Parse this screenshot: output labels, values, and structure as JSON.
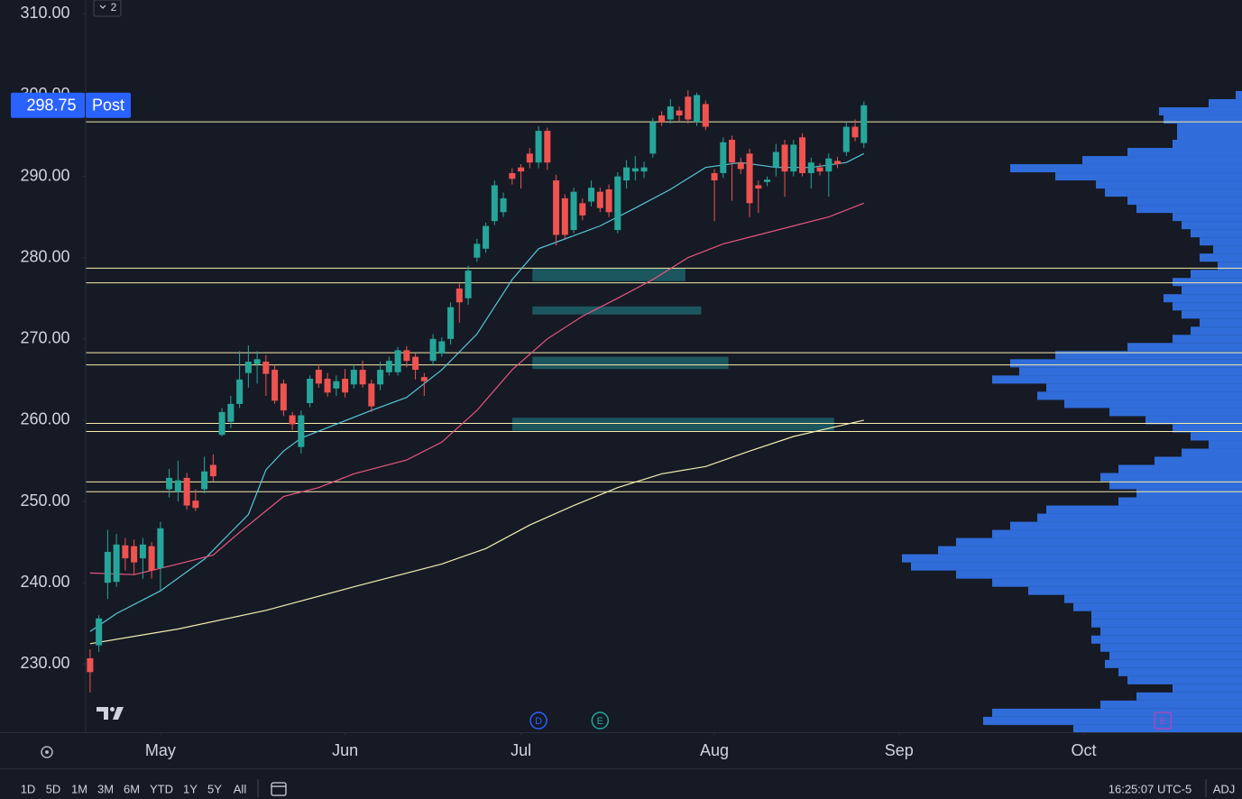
{
  "chart_data": {
    "type": "candlestick",
    "x": [
      0,
      1,
      2,
      3,
      4,
      5,
      6,
      7,
      8,
      9,
      10,
      11,
      12,
      13,
      14,
      15,
      16,
      17,
      18,
      19,
      20,
      21,
      22,
      23,
      24,
      25,
      26,
      27,
      28,
      29,
      30,
      31,
      32,
      33,
      34,
      35,
      36,
      37,
      38,
      39,
      40,
      41,
      42,
      43,
      44,
      45,
      46,
      47,
      48,
      49,
      50,
      51,
      52,
      53,
      54,
      55,
      56,
      57,
      58,
      59,
      60,
      61,
      62,
      63,
      64,
      65,
      66,
      67,
      68,
      69,
      70,
      71,
      72,
      73,
      74,
      75,
      76,
      77,
      78,
      79,
      80,
      81,
      82,
      83,
      84,
      85,
      86,
      87,
      88
    ],
    "open": [
      230.7,
      232.3,
      240.0,
      240.1,
      244.6,
      244.5,
      243.0,
      244.5,
      241.8,
      251.5,
      251.2,
      252.9,
      250.1,
      251.5,
      254.5,
      258.2,
      259.8,
      262.0,
      265.8,
      266.9,
      267.2,
      266.2,
      264.5,
      260.6,
      256.7,
      262.1,
      266.2,
      265.1,
      263.9,
      265.1,
      264.4,
      266.2,
      264.5,
      264.4,
      265.9,
      265.9,
      268.6,
      267.8,
      265.3,
      267.3,
      268.2,
      270.0,
      276.2,
      275.0,
      280.0,
      281.1,
      284.5,
      285.6,
      290.4,
      291.1,
      292.8,
      291.7,
      295.6,
      289.5,
      287.3,
      283.4,
      286.7,
      286.9,
      288.1,
      288.4,
      283.4,
      289.5,
      290.6,
      290.6,
      292.8,
      297.5,
      297.0,
      298.1,
      299.8,
      296.7,
      298.9,
      290.4,
      290.4,
      294.5,
      291.7,
      292.8,
      288.9,
      289.3,
      291.1,
      293.9,
      290.6,
      294.8,
      290.4,
      291.1,
      290.6,
      291.9,
      293.0,
      296.1,
      294.1
    ],
    "high": [
      231.8,
      236.0,
      246.5,
      246.0,
      245.5,
      245.3,
      245.5,
      245.0,
      247.5,
      254.0,
      255.0,
      253.5,
      251.5,
      255.5,
      255.8,
      261.5,
      263.0,
      268.5,
      269.2,
      268.5,
      268.0,
      266.8,
      265.0,
      261.0,
      261.2,
      265.5,
      266.9,
      265.8,
      265.5,
      266.3,
      266.8,
      267.3,
      265.0,
      267.2,
      267.8,
      269.0,
      269.1,
      268.2,
      265.8,
      270.6,
      270.2,
      274.5,
      276.8,
      279.0,
      282.3,
      284.3,
      289.5,
      288.0,
      291.0,
      291.5,
      293.5,
      296.2,
      296.0,
      290.2,
      287.8,
      288.6,
      287.3,
      289.5,
      288.6,
      289.0,
      290.5,
      292.0,
      292.5,
      291.8,
      297.2,
      298.0,
      299.5,
      298.6,
      300.6,
      300.3,
      299.3,
      290.9,
      294.8,
      295.0,
      292.3,
      293.4,
      289.5,
      290.0,
      294.0,
      294.5,
      294.5,
      295.3,
      292.3,
      291.6,
      292.8,
      292.4,
      296.7,
      297.0,
      299.2
    ],
    "low": [
      226.5,
      231.5,
      238.0,
      239.5,
      241.5,
      241.0,
      240.5,
      240.5,
      239.0,
      250.5,
      250.0,
      249.0,
      248.8,
      251.0,
      252.5,
      258.0,
      259.0,
      261.5,
      264.0,
      264.5,
      263.0,
      262.0,
      260.5,
      258.8,
      255.9,
      261.6,
      264.0,
      262.9,
      263.0,
      262.8,
      263.9,
      264.0,
      261.0,
      263.7,
      265.5,
      265.5,
      266.5,
      265.0,
      263.0,
      266.7,
      267.8,
      269.3,
      272.0,
      274.2,
      279.5,
      280.6,
      284.0,
      285.0,
      289.0,
      288.5,
      291.0,
      291.0,
      290.8,
      281.5,
      282.3,
      283.0,
      284.6,
      286.3,
      285.6,
      285.0,
      283.0,
      288.5,
      289.5,
      289.8,
      292.3,
      296.2,
      296.5,
      296.8,
      296.5,
      296.2,
      295.7,
      284.5,
      289.8,
      287.0,
      290.3,
      285.0,
      285.5,
      288.8,
      290.0,
      287.5,
      290.0,
      290.0,
      288.5,
      290.1,
      287.5,
      291.0,
      292.5,
      294.3,
      293.5
    ],
    "close": [
      229.0,
      235.6,
      243.8,
      244.7,
      243.0,
      242.5,
      244.7,
      241.5,
      246.7,
      252.9,
      252.6,
      249.5,
      249.2,
      253.7,
      253.1,
      261.0,
      262.0,
      265.0,
      267.2,
      267.5,
      265.7,
      262.4,
      261.2,
      259.5,
      260.6,
      265.1,
      264.5,
      263.4,
      264.8,
      263.4,
      266.2,
      264.4,
      261.7,
      266.2,
      267.3,
      268.6,
      267.3,
      266.2,
      264.8,
      270.0,
      269.7,
      273.9,
      274.5,
      278.4,
      281.7,
      283.9,
      288.9,
      287.3,
      289.7,
      290.6,
      291.7,
      295.6,
      291.7,
      282.8,
      282.8,
      288.1,
      285.2,
      288.6,
      286.1,
      285.6,
      290.0,
      291.1,
      291.0,
      291.1,
      296.7,
      296.7,
      298.6,
      297.5,
      297.0,
      300.0,
      296.1,
      289.5,
      294.2,
      291.7,
      290.9,
      286.7,
      288.5,
      289.6,
      293.0,
      290.6,
      293.9,
      290.4,
      291.7,
      290.6,
      292.2,
      291.5,
      296.1,
      294.8,
      298.75
    ],
    "up_color": "#26a69a",
    "down_color": "#ef5350",
    "xlim": [
      -0.5,
      131
    ],
    "xticks": [
      {
        "value": 8,
        "label": "May"
      },
      {
        "value": 29,
        "label": "Jun"
      },
      {
        "value": 49,
        "label": "Jul"
      },
      {
        "value": 71,
        "label": "Aug"
      },
      {
        "value": 92,
        "label": "Sep"
      },
      {
        "value": 113,
        "label": "Oct"
      }
    ],
    "ylim": [
      221.6,
      311.7
    ],
    "yticks": [
      {
        "value": 310,
        "label": "310.00"
      },
      {
        "value": 300,
        "label": "300.00"
      },
      {
        "value": 290,
        "label": "290.00"
      },
      {
        "value": 280,
        "label": "280.00"
      },
      {
        "value": 270,
        "label": "270.00"
      },
      {
        "value": 260,
        "label": "260.00"
      },
      {
        "value": 250,
        "label": "250.00"
      },
      {
        "value": 240,
        "label": "240.00"
      },
      {
        "value": 230,
        "label": "230.00"
      }
    ],
    "last_price": 298.75,
    "last_price_tag": "Post",
    "last_price_color": "#2962ff",
    "moving_averages": [
      {
        "color": "#56c7d8",
        "x": [
          0,
          3,
          8,
          13,
          15,
          18,
          20,
          22,
          24,
          28,
          32,
          36,
          40,
          44,
          48,
          51,
          54,
          58,
          62,
          66,
          70,
          74,
          78,
          82,
          86,
          88
        ],
        "values": [
          234.0,
          236.2,
          239.0,
          242.9,
          245.1,
          248.4,
          253.9,
          256.2,
          257.8,
          259.5,
          261.2,
          262.8,
          266.2,
          270.6,
          277.3,
          281.1,
          282.3,
          283.9,
          286.1,
          288.4,
          291.1,
          291.7,
          291.1,
          291.1,
          291.7,
          292.8
        ]
      },
      {
        "color": "#e8567f",
        "x": [
          0,
          5,
          10,
          14,
          17,
          22,
          26,
          30,
          36,
          40,
          44,
          48,
          52,
          56,
          60,
          64,
          68,
          72,
          76,
          80,
          84,
          88
        ],
        "values": [
          241.2,
          241.0,
          242.3,
          243.4,
          246.2,
          250.6,
          251.7,
          253.4,
          255.1,
          257.3,
          261.2,
          266.2,
          270.0,
          272.8,
          275.0,
          277.3,
          280.0,
          281.7,
          282.8,
          283.9,
          285.0,
          286.7
        ]
      },
      {
        "color": "#f3eeb0",
        "x": [
          0,
          10,
          20,
          30,
          40,
          45,
          50,
          55,
          60,
          65,
          70,
          75,
          80,
          88
        ],
        "values": [
          232.5,
          234.3,
          236.6,
          239.5,
          242.3,
          244.2,
          247.1,
          249.5,
          251.7,
          253.4,
          254.3,
          256.2,
          258.0,
          260.0
        ]
      }
    ],
    "levels": {
      "color": "#f5ecaa",
      "values": [
        296.7,
        278.7,
        276.9,
        268.3,
        266.8,
        259.6,
        258.6,
        252.4,
        251.2
      ]
    },
    "zones": {
      "color": "#1f6b73",
      "items": [
        {
          "x": [
            50.3,
            67.7
          ],
          "y": [
            277.1,
            278.7
          ]
        },
        {
          "x": [
            50.3,
            69.5
          ],
          "y": [
            273.0,
            274.0
          ]
        },
        {
          "x": [
            50.3,
            72.6
          ],
          "y": [
            266.3,
            267.8
          ]
        },
        {
          "x": [
            48.0,
            84.6
          ],
          "y": [
            258.7,
            260.3
          ]
        }
      ]
    },
    "volume_profile": {
      "color": "#3377ee",
      "prices": [
        300,
        299,
        298,
        297,
        296,
        295,
        294,
        293,
        292,
        291,
        290,
        289,
        288,
        287,
        286,
        285,
        284,
        283,
        282,
        281,
        280,
        279,
        278,
        277,
        276,
        275,
        274,
        273,
        272,
        271,
        270,
        269,
        268,
        267,
        266,
        265,
        264,
        263,
        262,
        261,
        260,
        259,
        258,
        257,
        256,
        255,
        254,
        253,
        252,
        251,
        250,
        249,
        248,
        247,
        246,
        245,
        244,
        243,
        242,
        241,
        240,
        239,
        238,
        237,
        236,
        235,
        234,
        233,
        232,
        231,
        230,
        229,
        228,
        227,
        226,
        225,
        224,
        223,
        222
      ],
      "volumes": [
        7,
        37,
        92,
        87,
        72,
        72,
        77,
        127,
        177,
        257,
        207,
        162,
        152,
        127,
        117,
        77,
        67,
        57,
        47,
        32,
        47,
        27,
        57,
        77,
        67,
        87,
        77,
        67,
        47,
        57,
        77,
        127,
        207,
        257,
        247,
        277,
        217,
        227,
        197,
        147,
        107,
        77,
        57,
        37,
        67,
        97,
        137,
        157,
        147,
        117,
        137,
        217,
        227,
        257,
        277,
        317,
        337,
        377,
        367,
        317,
        277,
        237,
        197,
        187,
        167,
        167,
        157,
        167,
        157,
        147,
        152,
        137,
        127,
        77,
        117,
        157,
        277,
        287,
        187
      ]
    },
    "events": [
      {
        "label": "D",
        "x": 51,
        "color": "#2962ff",
        "shape": "circle"
      },
      {
        "label": "E",
        "x": 58,
        "color": "#26a69a",
        "shape": "circle"
      },
      {
        "label": "E",
        "x": 122,
        "color": "#ab47bc",
        "shape": "square"
      }
    ]
  },
  "indicator_badge": "2",
  "toolbar": {
    "ranges": [
      "1D",
      "5D",
      "1M",
      "3M",
      "6M",
      "YTD",
      "1Y",
      "5Y",
      "All"
    ],
    "clock": "16:25:07 UTC-5",
    "adjust": "ADJ"
  }
}
